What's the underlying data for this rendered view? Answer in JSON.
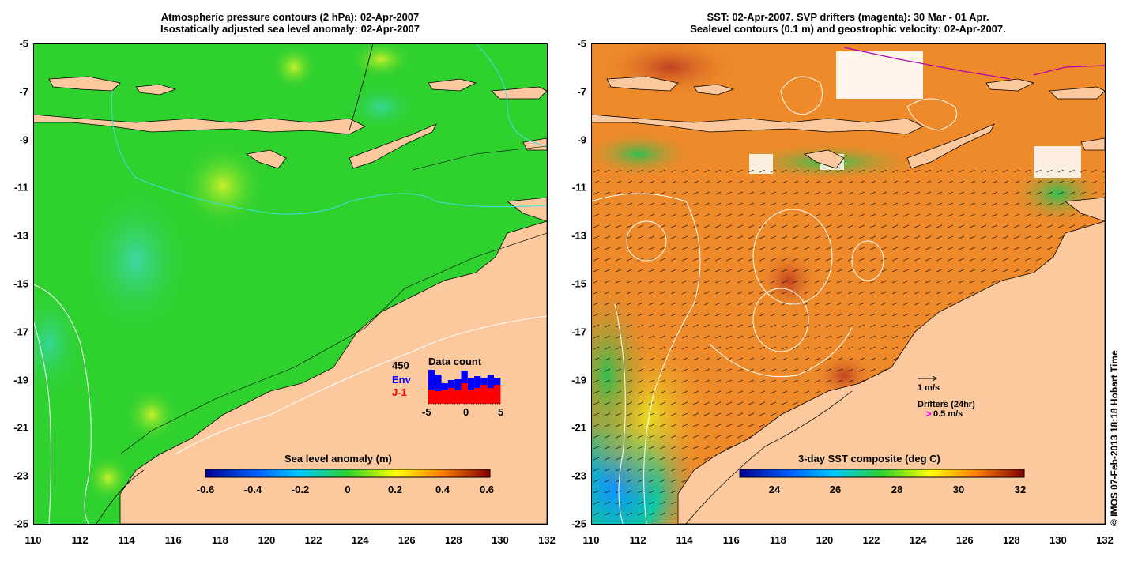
{
  "left_panel": {
    "title_line1": "Atmospheric pressure contours (2 hPa): 02-Apr-2007",
    "title_line2": "Isostatically adjusted sea level anomaly: 02-Apr-2007",
    "colorbar_title": "Sea level anomaly (m)",
    "colorbar_ticks": [
      "-0.6",
      "-0.4",
      "-0.2",
      "0",
      "0.2",
      "0.4",
      "0.6"
    ],
    "inset": {
      "title": "Data count",
      "max_label": "450",
      "series": [
        {
          "name": "Env",
          "color": "#0000ff"
        },
        {
          "name": "J-1",
          "color": "#ff0000"
        }
      ],
      "x_ticks": [
        "-5",
        "0",
        "5"
      ],
      "env_counts": [
        430,
        370,
        260,
        300,
        310,
        420,
        320,
        350,
        330,
        370,
        330
      ],
      "j1_counts": [
        180,
        160,
        180,
        200,
        170,
        260,
        180,
        200,
        240,
        200,
        240
      ]
    }
  },
  "right_panel": {
    "title_line1": "SST: 02-Apr-2007. SVP drifters (magenta): 30 Mar - 01 Apr.",
    "title_line2": "Sealevel contours (0.1 m) and geostrophic velocity: 02-Apr-2007.",
    "colorbar_title": "3-day SST composite (deg C)",
    "colorbar_ticks": [
      "24",
      "26",
      "28",
      "30",
      "32"
    ],
    "velocity_legend": "1 m/s",
    "drifters_legend": "Drifters (24hr)",
    "drifters_speed": "0.5 m/s",
    "drifter_symbol": ">"
  },
  "axes": {
    "x_ticks": [
      "110",
      "112",
      "114",
      "116",
      "118",
      "120",
      "122",
      "124",
      "126",
      "128",
      "130",
      "132"
    ],
    "y_ticks": [
      "-5",
      "-7",
      "-9",
      "-11",
      "-13",
      "-15",
      "-17",
      "-19",
      "-21",
      "-23",
      "-25"
    ]
  },
  "credit": "© IMOS 07-Feb-2013 18:18 Hobart Time",
  "colors": {
    "land": "#fbc99d",
    "sla_ocean": "#2fd12f",
    "sst_ocean": "#ee8a2a",
    "contour_white": "#ffffff",
    "contour_cyan": "#3de0e0"
  }
}
